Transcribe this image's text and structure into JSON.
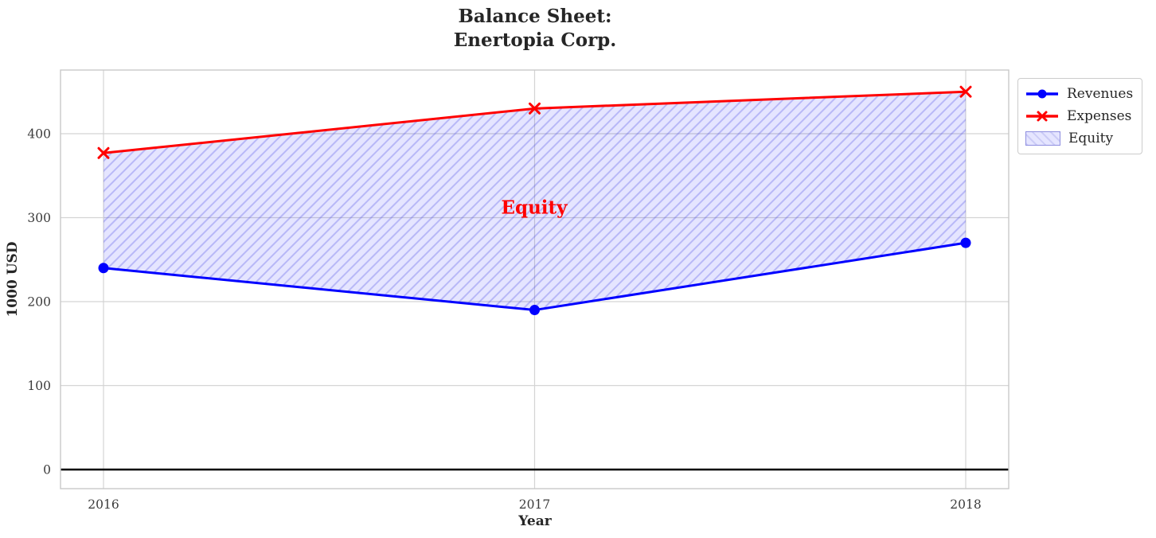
{
  "title": "Balance Sheet:\nEnertopia Corp.",
  "chart_data": {
    "type": "line",
    "title": "Balance Sheet: Enertopia Corp.",
    "xlabel": "Year",
    "ylabel": "1000 USD",
    "x": [
      2016,
      2017,
      2018
    ],
    "series": [
      {
        "name": "Revenues",
        "values": [
          240,
          190,
          270
        ],
        "color": "#0000ff",
        "marker": "circle"
      },
      {
        "name": "Expenses",
        "values": [
          377,
          430,
          450
        ],
        "color": "#ff0000",
        "marker": "x"
      }
    ],
    "area": {
      "name": "Equity",
      "between": [
        "Revenues",
        "Expenses"
      ],
      "fill_color": "#0000ff",
      "fill_opacity": 0.1,
      "hatch": "//",
      "hatch_color": "rgba(70,70,225,0.28)"
    },
    "annotation": {
      "text": "Equity",
      "x": 2017,
      "y": 313,
      "color": "#ff0000"
    },
    "xticks": [
      2016,
      2017,
      2018
    ],
    "yticks": [
      0,
      100,
      200,
      300,
      400
    ],
    "xlim": [
      2015.9,
      2018.1
    ],
    "ylim": [
      -23,
      478
    ],
    "grid": true,
    "zero_line": true,
    "legend_position": "upper right, outside plot",
    "colors": {
      "grid": "#d4d4d4",
      "spine": "#c9c9c9",
      "tick_text": "#3b3b3b",
      "zero_line": "#000000"
    }
  }
}
